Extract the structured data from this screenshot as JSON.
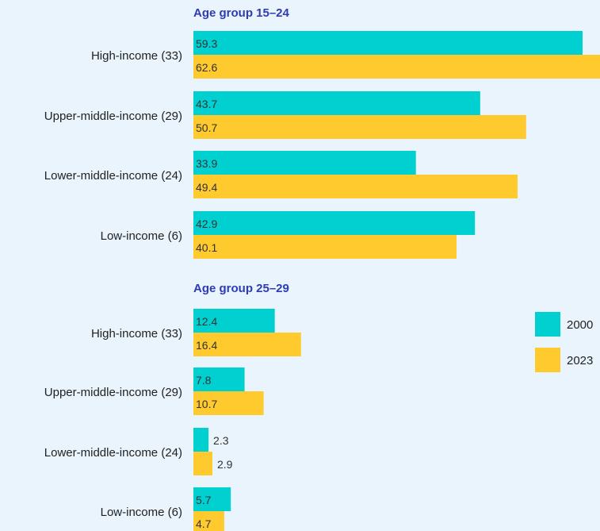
{
  "chart_data": {
    "type": "bar",
    "orientation": "horizontal",
    "legend_position": "right",
    "colors": {
      "2000": "#00d0d0",
      "2023": "#ffca2e",
      "title": "#2d3bb5"
    },
    "series_names": [
      "2000",
      "2023"
    ],
    "panels": [
      {
        "title": "Age group 15–24",
        "categories": [
          "High-income (33)",
          "Upper-middle-income (29)",
          "Lower-middle-income (24)",
          "Low-income (6)"
        ],
        "series": [
          {
            "name": "2000",
            "values": [
              59.3,
              43.7,
              33.9,
              42.9
            ]
          },
          {
            "name": "2023",
            "values": [
              62.6,
              50.7,
              49.4,
              40.1
            ]
          }
        ]
      },
      {
        "title": "Age group 25–29",
        "categories": [
          "High-income (33)",
          "Upper-middle-income (29)",
          "Lower-middle-income (24)",
          "Low-income (6)"
        ],
        "series": [
          {
            "name": "2000",
            "values": [
              12.4,
              7.8,
              2.3,
              5.7
            ]
          },
          {
            "name": "2023",
            "values": [
              16.4,
              10.7,
              2.9,
              4.7
            ]
          }
        ]
      }
    ]
  }
}
